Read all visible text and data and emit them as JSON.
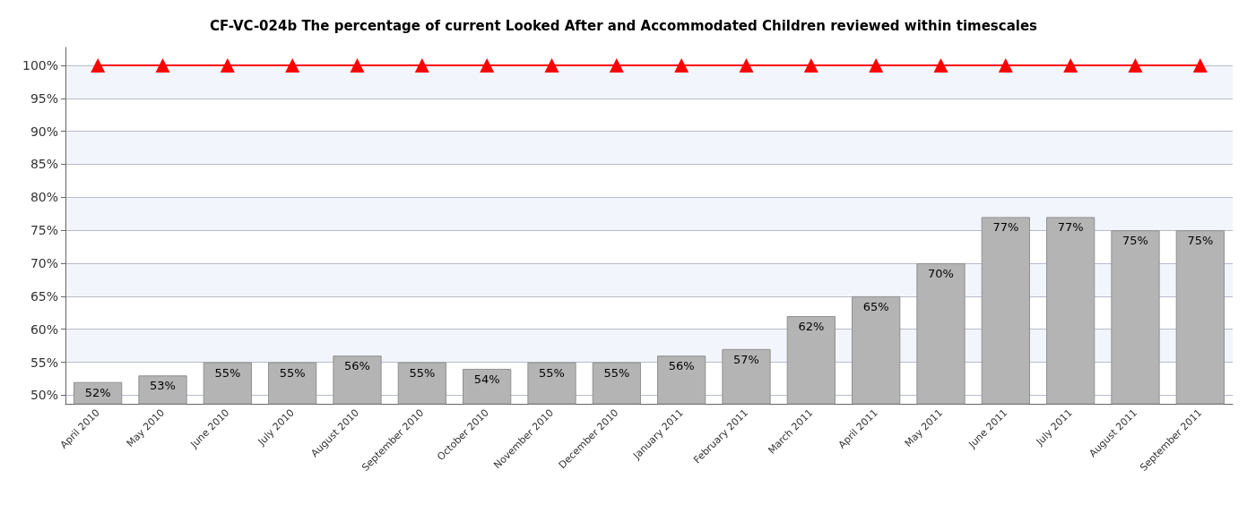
{
  "chart_data": {
    "type": "bar",
    "title": "CF-VC-024b The percentage of current Looked After and Accommodated Children reviewed within timescales",
    "categories": [
      "April 2010",
      "May 2010",
      "June 2010",
      "July 2010",
      "August 2010",
      "September 2010",
      "October 2010",
      "November 2010",
      "December 2010",
      "January 2011",
      "February 2011",
      "March 2011",
      "April 2011",
      "May 2011",
      "June 2011",
      "July 2011",
      "August 2011",
      "September 2011"
    ],
    "series": [
      {
        "color": "#b4b4b4",
        "values": [
          52,
          53,
          55,
          55,
          56,
          55,
          54,
          55,
          55,
          56,
          57,
          62,
          65,
          70,
          77,
          77,
          75,
          75
        ],
        "value_labels": [
          "52%",
          "53%",
          "55%",
          "55%",
          "56%",
          "55%",
          "54%",
          "55%",
          "55%",
          "56%",
          "57%",
          "62%",
          "65%",
          "70%",
          "77%",
          "77%",
          "75%",
          "75%"
        ]
      },
      {
        "type": "line",
        "color": "#ff0000",
        "values": [
          100,
          100,
          100,
          100,
          100,
          100,
          100,
          100,
          100,
          100,
          100,
          100,
          100,
          100,
          100,
          100,
          100,
          100
        ]
      }
    ],
    "marker": "triangle",
    "line_style": "solid",
    "ylim": [
      48.7,
      102.7
    ],
    "yticks": [
      {
        "value": 50,
        "label": "50%"
      },
      {
        "value": 55,
        "label": "55%"
      },
      {
        "value": 60,
        "label": "60%"
      },
      {
        "value": 65,
        "label": "65%"
      },
      {
        "value": 70,
        "label": "70%"
      },
      {
        "value": 75,
        "label": "75%"
      },
      {
        "value": 80,
        "label": "80%"
      },
      {
        "value": 85,
        "label": "85%"
      },
      {
        "value": 90,
        "label": "90%"
      },
      {
        "value": 95,
        "label": "95%"
      },
      {
        "value": 100,
        "label": "100%"
      }
    ],
    "grid": "y"
  }
}
